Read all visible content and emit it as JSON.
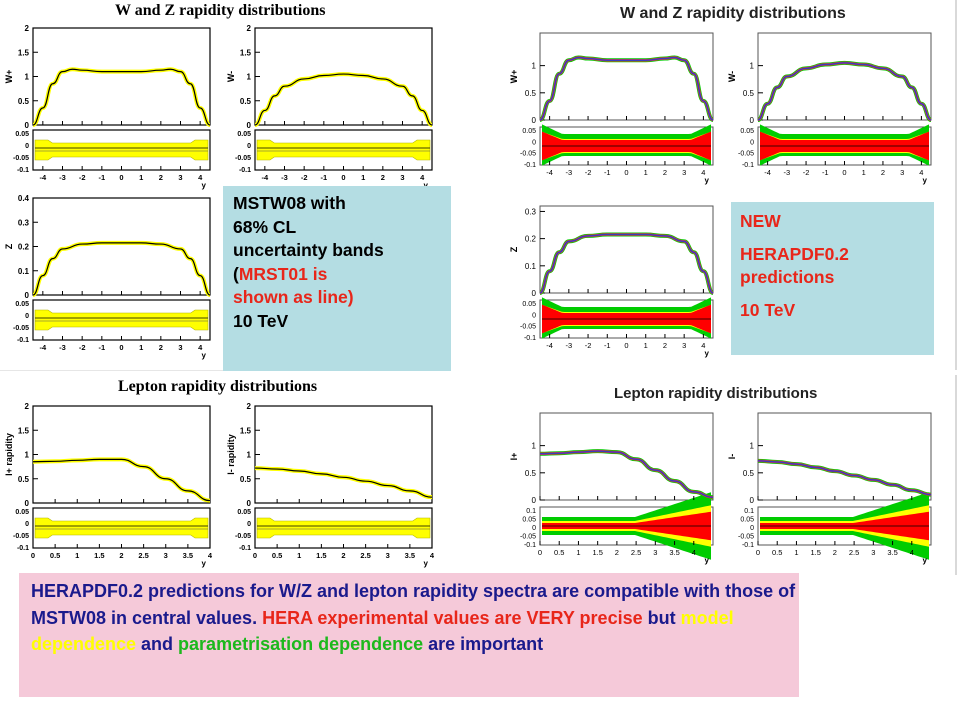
{
  "left_column": {
    "title_wz": "W and Z rapidity distributions",
    "title_lepton": "Lepton rapidity distributions"
  },
  "right_column": {
    "title_wz": "W and Z rapidity distributions",
    "title_lepton": "Lepton rapidity distributions"
  },
  "mstw_box": {
    "line1": "MSTW08 with",
    "line2": "68% CL",
    "line3": "uncertainty bands",
    "line4_open": "(",
    "line4_red": "MRST01 is",
    "line5_red": "shown as line)",
    "line6": "10 TeV"
  },
  "hera_box": {
    "line1": "NEW",
    "line2": "HERAPDF0.2",
    "line3": "predictions",
    "line4": "10 TeV"
  },
  "summary": {
    "part1": "HERAPDF0.2 predictions for W/Z and lepton rapidity spectra are compatible with those of MSTW08 in central values. ",
    "part2_red": "HERA experimental values are VERY precise",
    "part3": " but ",
    "part4_yellow": "model dependence",
    "part5": " and ",
    "part6_green": "parametrisation dependence",
    "part7": " are important"
  },
  "colors": {
    "mstw_band": "#ffff00",
    "hera_exp_band": "#ff0000",
    "hera_model_band": "#ffff00",
    "hera_param_band": "#00cc00",
    "curve": "#000000",
    "hera_curve": "#3b3bbf"
  },
  "chart_data": [
    {
      "id": "L1",
      "type": "line",
      "ylabel": "W+",
      "xlabel": "y",
      "xlim": [
        -4.5,
        4.5
      ],
      "ylim": [
        0,
        2
      ],
      "yticks": [
        "0",
        "0.5",
        "1",
        "1.5",
        "2"
      ],
      "xticks": [
        "-4",
        "-3",
        "-2",
        "-1",
        "0",
        "1",
        "2",
        "3",
        "4"
      ],
      "ratio_yticks": [
        "0.05",
        "0",
        "-0.05",
        "-0.1"
      ],
      "x": [
        -4.5,
        -4,
        -3.5,
        -3,
        -2.5,
        -2,
        -1,
        0,
        1,
        2,
        2.5,
        3,
        3.5,
        4,
        4.5
      ],
      "y": [
        0,
        0.35,
        0.85,
        1.1,
        1.15,
        1.13,
        1.1,
        1.1,
        1.1,
        1.13,
        1.15,
        1.1,
        0.85,
        0.35,
        0
      ]
    },
    {
      "id": "L2",
      "type": "line",
      "ylabel": "W-",
      "xlabel": "y",
      "xlim": [
        -4.5,
        4.5
      ],
      "ylim": [
        0,
        2
      ],
      "yticks": [
        "0",
        "0.5",
        "1",
        "1.5",
        "2"
      ],
      "xticks": [
        "-4",
        "-3",
        "-2",
        "-1",
        "0",
        "1",
        "2",
        "3",
        "4"
      ],
      "ratio_yticks": [
        "0.05",
        "0",
        "-0.05",
        "-0.1"
      ],
      "x": [
        -4.5,
        -4,
        -3.5,
        -3,
        -2,
        -1,
        0,
        1,
        2,
        3,
        3.5,
        4,
        4.5
      ],
      "y": [
        0,
        0.3,
        0.6,
        0.8,
        0.95,
        1.02,
        1.05,
        1.02,
        0.95,
        0.8,
        0.6,
        0.3,
        0
      ]
    },
    {
      "id": "L3",
      "type": "line",
      "ylabel": "Z",
      "xlabel": "y",
      "xlim": [
        -4.5,
        4.5
      ],
      "ylim": [
        0,
        0.4
      ],
      "yticks": [
        "0",
        "0.1",
        "0.2",
        "0.3",
        "0.4"
      ],
      "xticks": [
        "-4",
        "-3",
        "-2",
        "-1",
        "0",
        "1",
        "2",
        "3",
        "4"
      ],
      "ratio_yticks": [
        "0.05",
        "0",
        "-0.05",
        "-0.1"
      ],
      "x": [
        -4.5,
        -4,
        -3.5,
        -3,
        -2,
        -1,
        0,
        1,
        2,
        3,
        3.5,
        4,
        4.5
      ],
      "y": [
        0,
        0.08,
        0.15,
        0.19,
        0.21,
        0.215,
        0.215,
        0.215,
        0.21,
        0.19,
        0.15,
        0.08,
        0
      ]
    },
    {
      "id": "L4",
      "type": "line",
      "ylabel": "l+ rapidity",
      "xlabel": "y",
      "xlim": [
        0,
        4
      ],
      "ylim": [
        0,
        2
      ],
      "yticks": [
        "0",
        "0.5",
        "1",
        "1.5",
        "2"
      ],
      "xticks": [
        "0",
        "0.5",
        "1",
        "1.5",
        "2",
        "2.5",
        "3",
        "3.5",
        "4"
      ],
      "ratio_yticks": [
        "0.05",
        "0",
        "-0.05",
        "-0.1"
      ],
      "x": [
        0,
        0.5,
        1,
        1.5,
        2,
        2.5,
        3,
        3.5,
        4
      ],
      "y": [
        0.85,
        0.86,
        0.88,
        0.9,
        0.9,
        0.75,
        0.5,
        0.25,
        0.05
      ]
    },
    {
      "id": "L5",
      "type": "line",
      "ylabel": "l- rapidity",
      "xlabel": "y",
      "xlim": [
        0,
        4
      ],
      "ylim": [
        0,
        2
      ],
      "yticks": [
        "0",
        "0.5",
        "1",
        "1.5",
        "2"
      ],
      "xticks": [
        "0",
        "0.5",
        "1",
        "1.5",
        "2",
        "2.5",
        "3",
        "3.5",
        "4"
      ],
      "ratio_yticks": [
        "0.05",
        "0",
        "-0.05",
        "-0.1"
      ],
      "x": [
        0,
        0.5,
        1,
        1.5,
        2,
        2.5,
        3,
        3.5,
        4
      ],
      "y": [
        0.72,
        0.7,
        0.66,
        0.6,
        0.53,
        0.45,
        0.36,
        0.25,
        0.12
      ]
    },
    {
      "id": "R1",
      "type": "line",
      "ylabel": "W+",
      "xlabel": "y",
      "xlim": [
        -4.5,
        4.5
      ],
      "ylim": [
        0,
        1.6
      ],
      "yticks": [
        "0",
        "0.5",
        "1"
      ],
      "xticks": [
        "-4",
        "-3",
        "-2",
        "-1",
        "0",
        "1",
        "2",
        "3",
        "4"
      ],
      "ratio_yticks": [
        "0.05",
        "0",
        "-0.05",
        "-0.1"
      ],
      "x": [
        -4.5,
        -4,
        -3.5,
        -3,
        -2.5,
        -2,
        -1,
        0,
        1,
        2,
        2.5,
        3,
        3.5,
        4,
        4.5
      ],
      "y": [
        0,
        0.35,
        0.85,
        1.1,
        1.15,
        1.13,
        1.1,
        1.1,
        1.1,
        1.13,
        1.15,
        1.1,
        0.85,
        0.35,
        0
      ]
    },
    {
      "id": "R2",
      "type": "line",
      "ylabel": "W-",
      "xlabel": "y",
      "xlim": [
        -4.5,
        4.5
      ],
      "ylim": [
        0,
        1.6
      ],
      "yticks": [
        "0",
        "0.5",
        "1"
      ],
      "xticks": [
        "-4",
        "-3",
        "-2",
        "-1",
        "0",
        "1",
        "2",
        "3",
        "4"
      ],
      "ratio_yticks": [
        "0.05",
        "0",
        "-0.05",
        "-0.1"
      ],
      "x": [
        -4.5,
        -4,
        -3.5,
        -3,
        -2,
        -1,
        0,
        1,
        2,
        3,
        3.5,
        4,
        4.5
      ],
      "y": [
        0,
        0.3,
        0.6,
        0.8,
        0.95,
        1.02,
        1.05,
        1.02,
        0.95,
        0.8,
        0.6,
        0.3,
        0
      ]
    },
    {
      "id": "R3",
      "type": "line",
      "ylabel": "Z",
      "xlabel": "y",
      "xlim": [
        -4.5,
        4.5
      ],
      "ylim": [
        0,
        0.32
      ],
      "yticks": [
        "0",
        "0.1",
        "0.2",
        "0.3"
      ],
      "xticks": [
        "-4",
        "-3",
        "-2",
        "-1",
        "0",
        "1",
        "2",
        "3",
        "4"
      ],
      "ratio_yticks": [
        "0.05",
        "0",
        "-0.05",
        "-0.1"
      ],
      "x": [
        -4.5,
        -4,
        -3.5,
        -3,
        -2,
        -1,
        0,
        1,
        2,
        3,
        3.5,
        4,
        4.5
      ],
      "y": [
        0,
        0.08,
        0.15,
        0.19,
        0.21,
        0.215,
        0.215,
        0.215,
        0.21,
        0.19,
        0.15,
        0.08,
        0
      ]
    },
    {
      "id": "R4",
      "type": "line",
      "ylabel": "l+",
      "xlabel": "y",
      "xlim": [
        0,
        4.5
      ],
      "ylim": [
        0,
        1.6
      ],
      "yticks": [
        "0",
        "0.5",
        "1"
      ],
      "xticks": [
        "0",
        "0.5",
        "1",
        "1.5",
        "2",
        "2.5",
        "3",
        "3.5",
        "4"
      ],
      "ratio_yticks": [
        "0.1",
        "0.05",
        "0",
        "-0.05",
        "-0.1"
      ],
      "x": [
        0,
        0.5,
        1,
        1.5,
        2,
        2.5,
        3,
        3.5,
        4,
        4.5
      ],
      "y": [
        0.85,
        0.86,
        0.88,
        0.9,
        0.88,
        0.75,
        0.55,
        0.35,
        0.15,
        0.05
      ]
    },
    {
      "id": "R5",
      "type": "line",
      "ylabel": "l-",
      "xlabel": "y",
      "xlim": [
        0,
        4.5
      ],
      "ylim": [
        0,
        1.6
      ],
      "yticks": [
        "0",
        "0.5",
        "1"
      ],
      "xticks": [
        "0",
        "0.5",
        "1",
        "1.5",
        "2",
        "2.5",
        "3",
        "3.5",
        "4"
      ],
      "ratio_yticks": [
        "0.1",
        "0.05",
        "0",
        "-0.05",
        "-0.1"
      ],
      "x": [
        0,
        0.5,
        1,
        1.5,
        2,
        2.5,
        3,
        3.5,
        4,
        4.5
      ],
      "y": [
        0.72,
        0.7,
        0.66,
        0.6,
        0.53,
        0.45,
        0.37,
        0.28,
        0.18,
        0.1
      ]
    }
  ]
}
